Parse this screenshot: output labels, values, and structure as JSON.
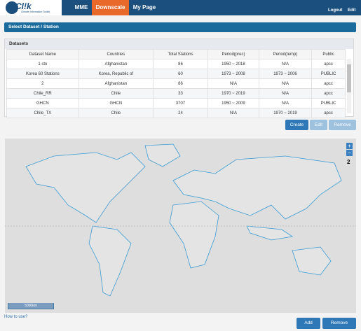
{
  "header": {
    "logo": "Cl!k",
    "logo_sub": "Climate Information Toolkit",
    "nav": [
      "MME",
      "Downscale",
      "My Page"
    ],
    "links": [
      "Logout",
      "Edit"
    ]
  },
  "section_title": "Select Dataset / Station",
  "datasets": {
    "title": "Datasets",
    "columns": [
      "Dataset Name",
      "Countries",
      "Total Stations",
      "Period(prec)",
      "Period(temp)",
      "Public"
    ],
    "rows": [
      [
        "1 stn",
        "Afghanistan",
        "86",
        "1950 ~ 2018",
        "N/A",
        "apcc"
      ],
      [
        "Korea 60 Stations",
        "Korea, Republic of",
        "60",
        "1973 ~ 2008",
        "1973 ~ 2006",
        "PUBLIC"
      ],
      [
        "2",
        "Afghanistan",
        "86",
        "N/A",
        "N/A",
        "apcc"
      ],
      [
        "Chile_RR",
        "Chile",
        "33",
        "1970 ~ 2019",
        "N/A",
        "apcc"
      ],
      [
        "GHCN",
        "GHCN",
        "3707",
        "1950 ~ 2009",
        "N/A",
        "PUBLIC"
      ],
      [
        "Chile_TX",
        "Chile",
        "24",
        "N/A",
        "1970 ~ 2019",
        "apcc"
      ]
    ],
    "buttons": [
      "Create",
      "Edit",
      "Remove"
    ]
  },
  "map": {
    "zoom_in": "+",
    "zoom_out": "−",
    "zoom_level": "2",
    "scale": "5000km"
  },
  "footer": {
    "help": "How to use?",
    "buttons": [
      "Add",
      "Remove"
    ]
  }
}
